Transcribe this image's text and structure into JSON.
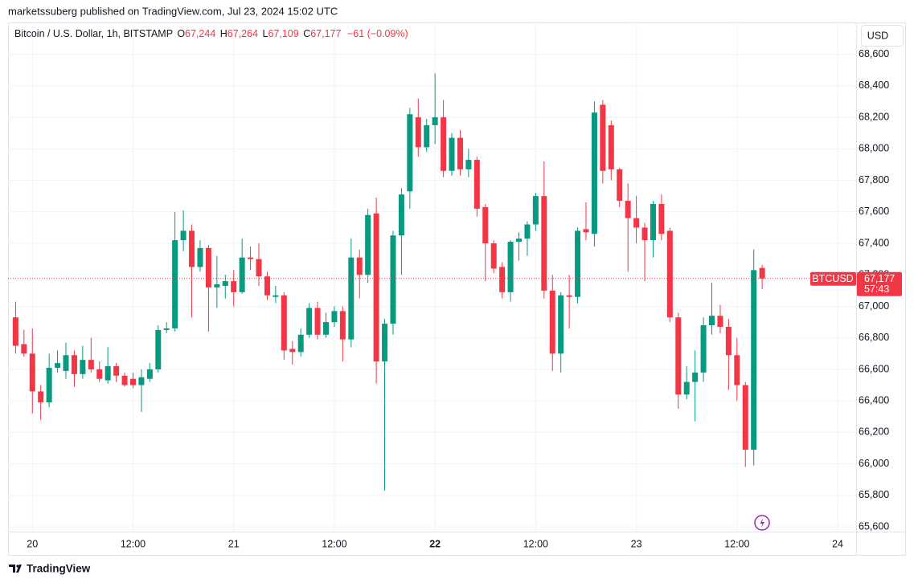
{
  "publisher": "marketssuberg published on TradingView.com, Jul 23, 2024 15:02 UTC",
  "currency_button": "USD",
  "legend": {
    "symbol": "Bitcoin / U.S. Dollar, 1h, BITSTAMP",
    "o_label": "O",
    "o": "67,244",
    "h_label": "H",
    "h": "67,264",
    "l_label": "L",
    "l": "67,109",
    "c_label": "C",
    "c": "67,177",
    "change": "−61 (−0.09%)"
  },
  "price_tag": {
    "symbol": "BTCUSD",
    "price": "67,177",
    "countdown": "57:43"
  },
  "brand": "TradingView",
  "chart_data": {
    "type": "candlestick",
    "up_color": "#089981",
    "down_color": "#f23645",
    "grid": true,
    "x": [
      -2,
      -1,
      0,
      1,
      2,
      3,
      4,
      5,
      6,
      7,
      8,
      9,
      10,
      11,
      12,
      13,
      14,
      15,
      16,
      17,
      18,
      19,
      20,
      21,
      22,
      23,
      24,
      25,
      26,
      27,
      28,
      29,
      30,
      31,
      32,
      33,
      34,
      35,
      36,
      37,
      38,
      39,
      40,
      41,
      42,
      43,
      44,
      45,
      46,
      47,
      48,
      49,
      50,
      51,
      52,
      53,
      54,
      55,
      56,
      57,
      58,
      59,
      60,
      61,
      62,
      63,
      64,
      65,
      66,
      67,
      68,
      69,
      70,
      71,
      72,
      73,
      74,
      75,
      76,
      77,
      78,
      79,
      80,
      81,
      82,
      83,
      84,
      85,
      86,
      87
    ],
    "ohlc": [
      [
        66930,
        67030,
        66700,
        66750
      ],
      [
        66760,
        66850,
        66680,
        66700
      ],
      [
        66700,
        66860,
        66320,
        66460
      ],
      [
        66460,
        66500,
        66280,
        66390
      ],
      [
        66390,
        66700,
        66360,
        66610
      ],
      [
        66610,
        66720,
        66580,
        66640
      ],
      [
        66590,
        66770,
        66540,
        66690
      ],
      [
        66690,
        66720,
        66490,
        66570
      ],
      [
        66570,
        66750,
        66540,
        66660
      ],
      [
        66660,
        66800,
        66580,
        66600
      ],
      [
        66600,
        66650,
        66520,
        66540
      ],
      [
        66530,
        66740,
        66510,
        66620
      ],
      [
        66620,
        66640,
        66520,
        66560
      ],
      [
        66560,
        66580,
        66490,
        66500
      ],
      [
        66540,
        66580,
        66480,
        66500
      ],
      [
        66500,
        66600,
        66330,
        66550
      ],
      [
        66540,
        66640,
        66520,
        66600
      ],
      [
        66600,
        66880,
        66580,
        66850
      ],
      [
        66850,
        66900,
        66830,
        66860
      ],
      [
        66860,
        67600,
        66840,
        67420
      ],
      [
        67420,
        67610,
        67350,
        67480
      ],
      [
        67480,
        67520,
        66930,
        67250
      ],
      [
        67250,
        67420,
        67220,
        67370
      ],
      [
        67370,
        67390,
        66840,
        67120
      ],
      [
        67120,
        67320,
        66990,
        67140
      ],
      [
        67130,
        67200,
        67050,
        67160
      ],
      [
        67160,
        67230,
        67000,
        67090
      ],
      [
        67090,
        67430,
        67080,
        67310
      ],
      [
        67310,
        67380,
        67230,
        67300
      ],
      [
        67300,
        67400,
        67130,
        67190
      ],
      [
        67190,
        67220,
        67040,
        67070
      ],
      [
        67060,
        67130,
        67020,
        67070
      ],
      [
        67070,
        67090,
        66660,
        66720
      ],
      [
        66730,
        66780,
        66630,
        66710
      ],
      [
        66710,
        66860,
        66680,
        66820
      ],
      [
        66820,
        67020,
        66800,
        66990
      ],
      [
        66990,
        67030,
        66790,
        66820
      ],
      [
        66820,
        66960,
        66800,
        66900
      ],
      [
        66900,
        67000,
        66870,
        66970
      ],
      [
        66970,
        67000,
        66650,
        66790
      ],
      [
        66790,
        67430,
        66740,
        67310
      ],
      [
        67310,
        67360,
        67050,
        67200
      ],
      [
        67200,
        67620,
        67150,
        67580
      ],
      [
        67590,
        67690,
        66510,
        66650
      ],
      [
        66650,
        66920,
        65830,
        66890
      ],
      [
        66890,
        67480,
        66820,
        67450
      ],
      [
        67450,
        67750,
        67200,
        67710
      ],
      [
        67730,
        68260,
        67620,
        68220
      ],
      [
        68200,
        68320,
        67950,
        68010
      ],
      [
        68010,
        68190,
        67980,
        68150
      ],
      [
        68150,
        68480,
        68030,
        68200
      ],
      [
        68200,
        68310,
        67820,
        67860
      ],
      [
        67860,
        68100,
        67830,
        68070
      ],
      [
        68070,
        68120,
        67830,
        67870
      ],
      [
        67870,
        68000,
        67820,
        67930
      ],
      [
        67930,
        67950,
        67570,
        67620
      ],
      [
        67630,
        67650,
        67160,
        67400
      ],
      [
        67400,
        67420,
        67210,
        67240
      ],
      [
        67250,
        67280,
        67050,
        67090
      ],
      [
        67090,
        67420,
        67030,
        67410
      ],
      [
        67410,
        67470,
        67290,
        67430
      ],
      [
        67430,
        67540,
        67320,
        67520
      ],
      [
        67520,
        67720,
        67480,
        67700
      ],
      [
        67700,
        67920,
        67050,
        67100
      ],
      [
        67100,
        67200,
        66590,
        66700
      ],
      [
        66700,
        67090,
        66580,
        67070
      ],
      [
        67070,
        67200,
        66860,
        67060
      ],
      [
        67060,
        67500,
        67020,
        67480
      ],
      [
        67490,
        67660,
        67420,
        67470
      ],
      [
        67460,
        68300,
        67380,
        68230
      ],
      [
        68280,
        68310,
        67780,
        67860
      ],
      [
        68150,
        68180,
        67800,
        67870
      ],
      [
        67870,
        67880,
        67630,
        67670
      ],
      [
        67670,
        67780,
        67220,
        67560
      ],
      [
        67560,
        67700,
        67400,
        67500
      ],
      [
        67500,
        67530,
        67160,
        67420
      ],
      [
        67420,
        67670,
        67310,
        67650
      ],
      [
        67650,
        67710,
        67420,
        67460
      ],
      [
        67480,
        67500,
        66900,
        66930
      ],
      [
        66930,
        66960,
        66350,
        66440
      ],
      [
        66440,
        66620,
        66410,
        66520
      ],
      [
        66520,
        66720,
        66270,
        66580
      ],
      [
        66580,
        66930,
        66520,
        66880
      ],
      [
        66880,
        67150,
        66820,
        66940
      ],
      [
        66940,
        67010,
        66830,
        66870
      ],
      [
        66870,
        66920,
        66470,
        66690
      ],
      [
        66690,
        66800,
        66400,
        66500
      ],
      [
        66500,
        66520,
        65980,
        66090
      ],
      [
        66090,
        67360,
        65990,
        67230
      ],
      [
        67244,
        67264,
        67109,
        67177
      ]
    ],
    "xlim": [
      -2.9,
      98.2
    ],
    "xticks": [
      {
        "value": 0,
        "label": "20"
      },
      {
        "value": 12,
        "label": "12:00"
      },
      {
        "value": 24,
        "label": "21"
      },
      {
        "value": 36,
        "label": "12:00"
      },
      {
        "value": 48,
        "label": "22"
      },
      {
        "value": 60,
        "label": "12:00"
      },
      {
        "value": 72,
        "label": "23"
      },
      {
        "value": 84,
        "label": "12:00"
      },
      {
        "value": 96,
        "label": "24"
      }
    ],
    "ylim": [
      65570,
      68690
    ],
    "yticks": [
      {
        "value": 65600,
        "label": "65,600"
      },
      {
        "value": 65800,
        "label": "65,800"
      },
      {
        "value": 66000,
        "label": "66,000"
      },
      {
        "value": 66200,
        "label": "66,200"
      },
      {
        "value": 66400,
        "label": "66,400"
      },
      {
        "value": 66600,
        "label": "66,600"
      },
      {
        "value": 66800,
        "label": "66,800"
      },
      {
        "value": 67000,
        "label": "67,000"
      },
      {
        "value": 67200,
        "label": "67,200"
      },
      {
        "value": 67400,
        "label": "67,400"
      },
      {
        "value": 67600,
        "label": "67,600"
      },
      {
        "value": 67800,
        "label": "67,800"
      },
      {
        "value": 68000,
        "label": "68,000"
      },
      {
        "value": 68200,
        "label": "68,200"
      },
      {
        "value": 68400,
        "label": "68,400"
      },
      {
        "value": 68600,
        "label": "68,600"
      }
    ]
  }
}
